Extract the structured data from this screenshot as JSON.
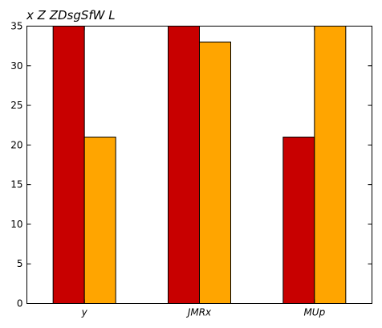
{
  "chart_data": {
    "type": "bar",
    "title": "x Z ZDsgSfW L",
    "xlabel": "",
    "ylabel": "",
    "categories": [
      "y",
      "JMRx",
      "MUp"
    ],
    "series": [
      {
        "color": "#c80000",
        "values": [
          35,
          35,
          21
        ]
      },
      {
        "color": "#ffa500",
        "values": [
          21,
          33,
          35
        ]
      }
    ],
    "ylim": [
      0,
      35
    ],
    "yticks": [
      0,
      5,
      10,
      15,
      20,
      25,
      30,
      35
    ],
    "grid": false
  }
}
